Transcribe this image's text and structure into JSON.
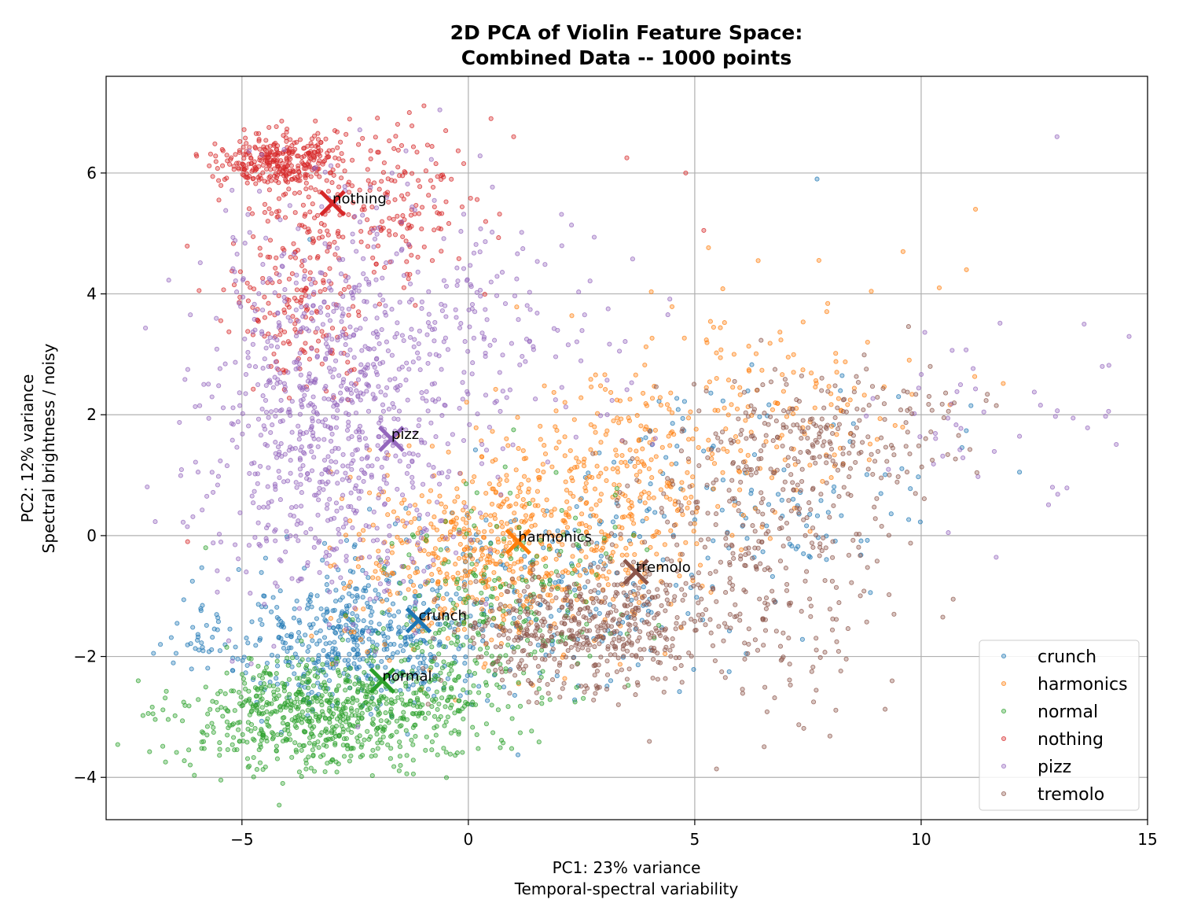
{
  "chart_data": {
    "type": "scatter",
    "title_line1": "2D PCA of Violin Feature Space:",
    "title_line2": "Combined Data -- 1000 points",
    "xlabel_line1": "PC1: 23% variance",
    "xlabel_line2": "Temporal-spectral variability",
    "ylabel_line1": "PC2: 12% variance",
    "ylabel_line2": "Spectral brightness / noisy",
    "xlim": [
      -8,
      15
    ],
    "ylim": [
      -4.7,
      7.6
    ],
    "x_ticks": [
      -5,
      0,
      5,
      10,
      15
    ],
    "x_tick_labels": [
      "−5",
      "0",
      "5",
      "10",
      "15"
    ],
    "y_ticks": [
      -4,
      -2,
      0,
      2,
      4,
      6
    ],
    "y_tick_labels": [
      "−4",
      "−2",
      "0",
      "2",
      "4",
      "6"
    ],
    "grid": true,
    "legend_position": "lower-right",
    "series": [
      {
        "name": "crunch",
        "color": "#1f77b4",
        "centroid": [
          -1.1,
          -1.4
        ],
        "clusters": [
          {
            "n": 480,
            "mean": [
              -2.5,
              -1.7
            ],
            "sd": [
              1.4,
              0.6
            ]
          },
          {
            "n": 200,
            "mean": [
              1.5,
              -1.0
            ],
            "sd": [
              2.0,
              0.8
            ]
          },
          {
            "n": 120,
            "mean": [
              6.5,
              0.8
            ],
            "sd": [
              2.0,
              0.9
            ]
          },
          {
            "n": 25,
            "mean": [
              -5.8,
              -1.8
            ],
            "sd": [
              0.5,
              0.25
            ]
          }
        ],
        "points": [
          [
            -6.8,
            -1.8
          ],
          [
            7.7,
            5.9
          ],
          [
            11.1,
            2.15
          ],
          [
            9.5,
            2.3
          ],
          [
            -3.5,
            4.9
          ]
        ]
      },
      {
        "name": "harmonics",
        "color": "#ff7f0e",
        "centroid": [
          1.1,
          -0.1
        ],
        "clusters": [
          {
            "n": 520,
            "mean": [
              0.5,
              -0.3
            ],
            "sd": [
              1.6,
              0.8
            ]
          },
          {
            "n": 280,
            "mean": [
              3.5,
              0.8
            ],
            "sd": [
              1.5,
              0.9
            ]
          },
          {
            "n": 140,
            "mean": [
              6.5,
              2.2
            ],
            "sd": [
              2.0,
              1.0
            ]
          }
        ],
        "points": [
          [
            11.2,
            5.4
          ],
          [
            9.6,
            4.7
          ],
          [
            10.4,
            4.1
          ],
          [
            11.0,
            4.4
          ],
          [
            6.4,
            4.55
          ],
          [
            -0.5,
            -0.8
          ]
        ]
      },
      {
        "name": "normal",
        "color": "#2ca02c",
        "centroid": [
          -1.9,
          -2.4
        ],
        "clusters": [
          {
            "n": 620,
            "mean": [
              -3.5,
              -3.0
            ],
            "sd": [
              1.4,
              0.45
            ]
          },
          {
            "n": 200,
            "mean": [
              -0.8,
              -2.5
            ],
            "sd": [
              1.0,
              0.6
            ]
          },
          {
            "n": 200,
            "mean": [
              0.8,
              -1.0
            ],
            "sd": [
              1.3,
              1.0
            ]
          }
        ],
        "points": [
          [
            -4.1,
            -4.1
          ],
          [
            -3.4,
            -3.9
          ],
          [
            -5.8,
            -0.2
          ]
        ]
      },
      {
        "name": "nothing",
        "color": "#d62728",
        "centroid": [
          -3.0,
          5.5
        ],
        "clusters": [
          {
            "n": 300,
            "mean": [
              -4.2,
              6.2
            ],
            "sd": [
              0.65,
              0.22
            ]
          },
          {
            "n": 270,
            "mean": [
              -2.4,
              5.4
            ],
            "sd": [
              1.3,
              0.65
            ]
          },
          {
            "n": 130,
            "mean": [
              -3.7,
              3.6
            ],
            "sd": [
              0.8,
              0.55
            ]
          }
        ],
        "points": [
          [
            0.5,
            6.9
          ],
          [
            3.5,
            6.25
          ],
          [
            4.8,
            6.0
          ],
          [
            5.2,
            5.05
          ],
          [
            -6.2,
            -0.1
          ],
          [
            1.0,
            6.6
          ],
          [
            -0.5,
            6.7
          ]
        ]
      },
      {
        "name": "pizz",
        "color": "#9467bd",
        "centroid": [
          -1.7,
          1.6
        ],
        "clusters": [
          {
            "n": 880,
            "mean": [
              -3.0,
              2.1
            ],
            "sd": [
              1.45,
              1.55
            ]
          },
          {
            "n": 160,
            "mean": [
              0.5,
              3.6
            ],
            "sd": [
              1.7,
              1.1
            ]
          },
          {
            "n": 45,
            "mean": [
              11.8,
              2.0
            ],
            "sd": [
              1.5,
              0.8
            ]
          }
        ],
        "points": [
          [
            13.0,
            6.6
          ],
          [
            10.6,
            0.05
          ],
          [
            13.6,
            3.5
          ],
          [
            14.0,
            2.8
          ],
          [
            12.9,
            0.8
          ]
        ]
      },
      {
        "name": "tremolo",
        "color": "#8c564b",
        "centroid": [
          3.7,
          -0.6
        ],
        "clusters": [
          {
            "n": 450,
            "mean": [
              2.5,
              -1.6
            ],
            "sd": [
              1.3,
              0.5
            ]
          },
          {
            "n": 320,
            "mean": [
              6.0,
              -0.6
            ],
            "sd": [
              1.6,
              1.1
            ]
          },
          {
            "n": 230,
            "mean": [
              7.8,
              1.6
            ],
            "sd": [
              1.5,
              0.6
            ]
          }
        ],
        "points": [
          [
            9.4,
            -1.3
          ],
          [
            10.2,
            2.8
          ],
          [
            7.8,
            2.4
          ],
          [
            -1.0,
            -2.2
          ]
        ]
      }
    ]
  }
}
